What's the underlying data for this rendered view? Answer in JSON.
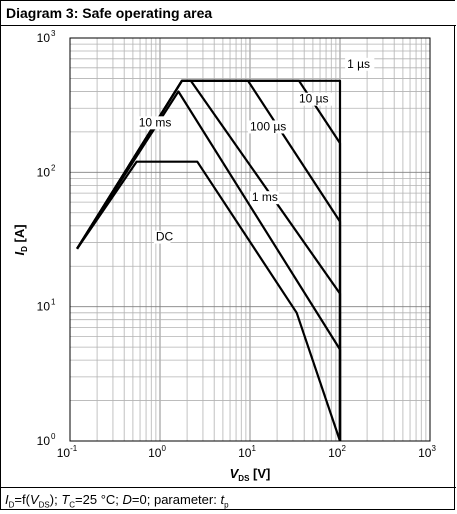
{
  "header": {
    "title": "Diagram 3: Safe operating area"
  },
  "footer": {
    "id_sym": "I",
    "id_sub": "D",
    "eq": "=f(",
    "v_sym": "V",
    "v_sub": "DS",
    "mid": "); ",
    "t_sym": "T",
    "t_sub": "C",
    "temp": "=25 °C; ",
    "d_sym": "D",
    "d_val": "=0; parameter: ",
    "tp_sym": "t",
    "tp_sub": "p"
  },
  "chart_data": {
    "type": "line",
    "title": "Diagram 3: Safe operating area",
    "xlabel": {
      "sym": "V",
      "sub": "DS",
      "unit": " [V]"
    },
    "ylabel": {
      "sym": "I",
      "sub": "D",
      "unit": " [A]"
    },
    "xscale": "log",
    "yscale": "log",
    "xlim": [
      0.1,
      1000
    ],
    "ylim": [
      1,
      1000
    ],
    "grid": true,
    "x_ticks": [
      {
        "base": "10",
        "exp": "-1",
        "value": 0.1
      },
      {
        "base": "10",
        "exp": "0",
        "value": 1
      },
      {
        "base": "10",
        "exp": "1",
        "value": 10
      },
      {
        "base": "10",
        "exp": "2",
        "value": 100
      },
      {
        "base": "10",
        "exp": "3",
        "value": 1000
      }
    ],
    "y_ticks": [
      {
        "base": "10",
        "exp": "0",
        "value": 1
      },
      {
        "base": "10",
        "exp": "1",
        "value": 10
      },
      {
        "base": "10",
        "exp": "2",
        "value": 100
      },
      {
        "base": "10",
        "exp": "3",
        "value": 1000
      }
    ],
    "series": [
      {
        "name": "1 µs",
        "points": [
          [
            0.12,
            27
          ],
          [
            1.75,
            480
          ],
          [
            100,
            480
          ],
          [
            100,
            1
          ]
        ]
      },
      {
        "name": "10 µs",
        "points": [
          [
            0.12,
            27
          ],
          [
            1.75,
            480
          ],
          [
            35,
            480
          ],
          [
            100,
            165
          ],
          [
            100,
            1
          ]
        ]
      },
      {
        "name": "100 µs",
        "points": [
          [
            0.12,
            27
          ],
          [
            1.75,
            480
          ],
          [
            9.5,
            480
          ],
          [
            100,
            43
          ],
          [
            100,
            1
          ]
        ]
      },
      {
        "name": "1 ms",
        "points": [
          [
            0.12,
            27
          ],
          [
            1.75,
            480
          ],
          [
            2.2,
            480
          ],
          [
            100,
            12.5
          ],
          [
            100,
            1
          ]
        ]
      },
      {
        "name": "10 ms",
        "points": [
          [
            0.12,
            27
          ],
          [
            1.6,
            400
          ],
          [
            100,
            4.8
          ],
          [
            100,
            1
          ]
        ]
      },
      {
        "name": "DC",
        "points": [
          [
            0.12,
            27
          ],
          [
            0.55,
            120
          ],
          [
            2.6,
            120
          ],
          [
            33,
            9
          ],
          [
            100,
            1
          ]
        ]
      }
    ],
    "annotations": [
      {
        "text": "1 µs",
        "x": 120,
        "y": 600
      },
      {
        "text": "10 µs",
        "x": 35,
        "y": 330
      },
      {
        "text": "100 µs",
        "x": 10,
        "y": 205
      },
      {
        "text": "1 ms",
        "x": 10.5,
        "y": 61
      },
      {
        "text": "10 ms",
        "x": 0.58,
        "y": 220
      },
      {
        "text": "DC",
        "x": 0.9,
        "y": 31
      }
    ]
  }
}
